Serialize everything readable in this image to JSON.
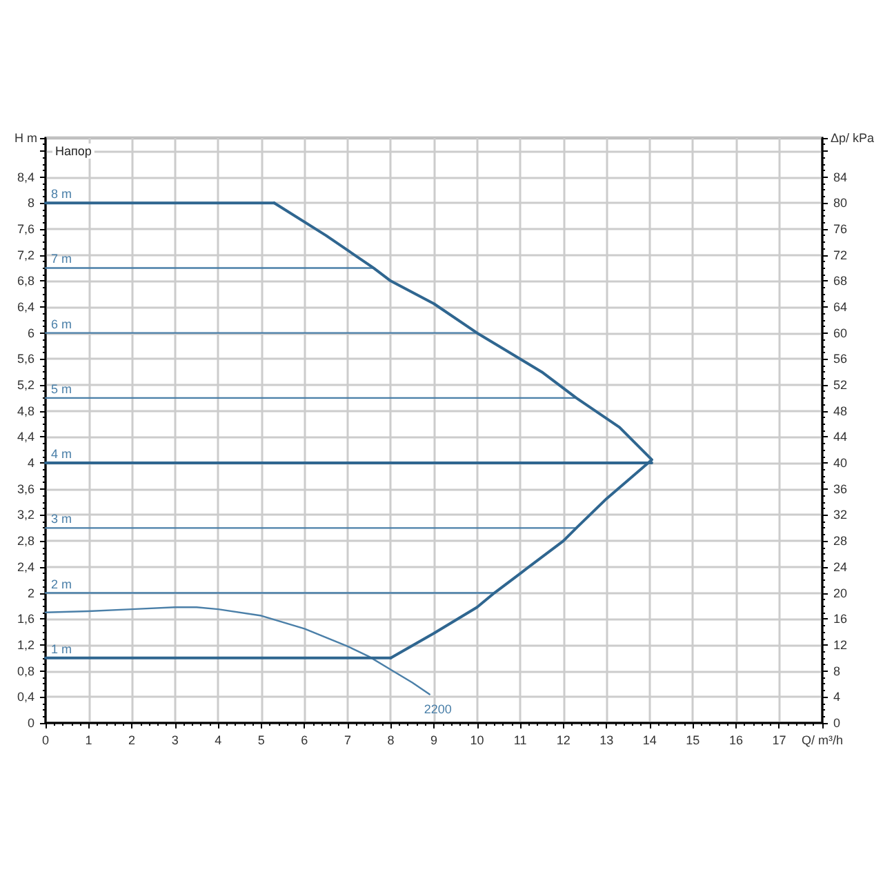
{
  "chart_data": {
    "type": "line",
    "xlabel": "Q/ m³/h",
    "ylabel": "H m",
    "y2label": "Δp/ kPa",
    "annotations": [
      "Напор"
    ],
    "xlim": [
      0,
      18
    ],
    "xticks": [
      0,
      1,
      2,
      3,
      4,
      5,
      6,
      7,
      8,
      9,
      10,
      11,
      12,
      13,
      14,
      15,
      16,
      17
    ],
    "ylim": [
      0,
      9
    ],
    "yticks": [
      0,
      {
        "value": 0.4,
        "label": "0,4"
      },
      {
        "value": 0.8,
        "label": "0,8"
      },
      {
        "value": 1.2,
        "label": "1,2"
      },
      {
        "value": 1.6,
        "label": "1,6"
      },
      2,
      {
        "value": 2.4,
        "label": "2,4"
      },
      {
        "value": 2.8,
        "label": "2,8"
      },
      {
        "value": 3.2,
        "label": "3,2"
      },
      {
        "value": 3.6,
        "label": "3,6"
      },
      4,
      {
        "value": 4.4,
        "label": "4,4"
      },
      {
        "value": 4.8,
        "label": "4,8"
      },
      {
        "value": 5.2,
        "label": "5,2"
      },
      {
        "value": 5.6,
        "label": "5,6"
      },
      6,
      {
        "value": 6.4,
        "label": "6,4"
      },
      {
        "value": 6.8,
        "label": "6,8"
      },
      {
        "value": 7.2,
        "label": "7,2"
      },
      {
        "value": 7.6,
        "label": "7,6"
      },
      8,
      {
        "value": 8.4,
        "label": "8,4"
      }
    ],
    "y2lim": [
      0,
      90
    ],
    "y2ticks": [
      0,
      4,
      8,
      12,
      16,
      20,
      24,
      28,
      32,
      36,
      40,
      44,
      48,
      52,
      56,
      60,
      64,
      68,
      72,
      76,
      80,
      84
    ],
    "grid": true,
    "legend": false,
    "marker": "none",
    "line_style": "solid",
    "series": [
      {
        "name": "1 m",
        "color": "#2f6690",
        "x": [
          0,
          8
        ],
        "values": [
          1,
          1
        ]
      },
      {
        "name": "2 m",
        "color": "#4a7fa8",
        "x": [
          0,
          10.4
        ],
        "values": [
          2,
          2
        ]
      },
      {
        "name": "3 m",
        "color": "#4a7fa8",
        "x": [
          0,
          12.3
        ],
        "values": [
          3,
          3
        ]
      },
      {
        "name": "4 m",
        "color": "#2f6690",
        "x": [
          0,
          14.05
        ],
        "values": [
          4,
          4
        ]
      },
      {
        "name": "5 m",
        "color": "#4a7fa8",
        "x": [
          0,
          12.3
        ],
        "values": [
          5,
          5
        ]
      },
      {
        "name": "6 m",
        "color": "#4a7fa8",
        "x": [
          0,
          10
        ],
        "values": [
          6,
          6
        ]
      },
      {
        "name": "7 m",
        "color": "#4a7fa8",
        "x": [
          0,
          7.6
        ],
        "values": [
          7,
          7
        ]
      },
      {
        "name": "8 m",
        "color": "#2f6690",
        "x": [
          0,
          5.3
        ],
        "values": [
          8,
          8
        ]
      },
      {
        "color": "#2f6690",
        "x": [
          8,
          9,
          10,
          10.4,
          11,
          12,
          12.3,
          13,
          14.05,
          13.3,
          12.3,
          11.5,
          10,
          9,
          8,
          7.6,
          6.5,
          5.3
        ],
        "values": [
          1,
          1.38,
          1.78,
          2,
          2.3,
          2.8,
          3,
          3.45,
          4.05,
          4.55,
          5,
          5.4,
          6,
          6.45,
          6.8,
          7,
          7.5,
          8
        ]
      },
      {
        "name": "2200",
        "color": "#4a7fa8",
        "x": [
          0,
          1,
          2,
          3,
          3.5,
          4,
          5,
          6,
          7,
          7.5,
          8,
          8.5,
          8.9
        ],
        "values": [
          1.7,
          1.72,
          1.75,
          1.78,
          1.78,
          1.75,
          1.65,
          1.45,
          1.18,
          1.02,
          0.82,
          0.62,
          0.44
        ]
      }
    ]
  }
}
